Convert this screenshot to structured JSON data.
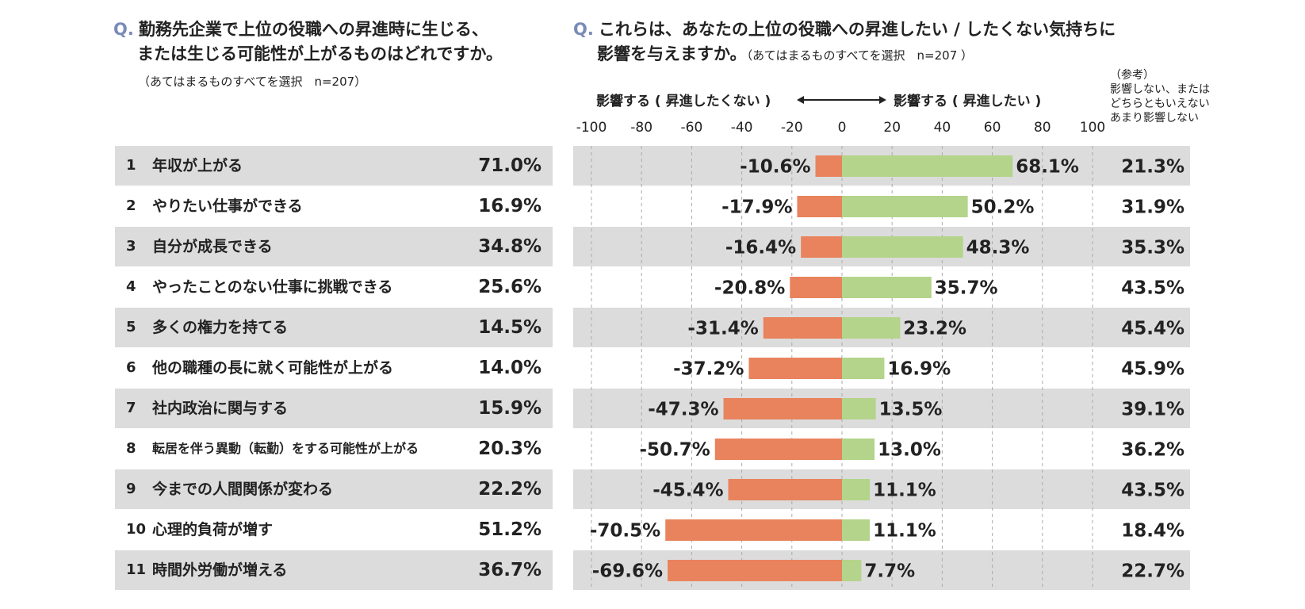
{
  "left_panel": {
    "q_mark": "Q.",
    "line1": "勤務先企業で上位の役職への昇進時に生じる、",
    "line2": "または生じる可能性が上がるものはどれですか。",
    "note": "（あてはまるものすべてを選択　n=207）",
    "rows": [
      {
        "num": "1",
        "label": "年収が上がる",
        "value": "71.0%"
      },
      {
        "num": "2",
        "label": "やりたい仕事ができる",
        "value": "16.9%"
      },
      {
        "num": "3",
        "label": "自分が成長できる",
        "value": "34.8%"
      },
      {
        "num": "4",
        "label": "やったことのない仕事に挑戦できる",
        "value": "25.6%"
      },
      {
        "num": "5",
        "label": "多くの権力を持てる",
        "value": "14.5%"
      },
      {
        "num": "6",
        "label": "他の職種の長に就く可能性が上がる",
        "value": "14.0%"
      },
      {
        "num": "7",
        "label": "社内政治に関与する",
        "value": "15.9%"
      },
      {
        "num": "8",
        "label": "転居を伴う異動（転勤）をする可能性が上がる",
        "value": "20.3%"
      },
      {
        "num": "9",
        "label": "今までの人間関係が変わる",
        "value": "22.2%"
      },
      {
        "num": "10",
        "label": "心理的負荷が増す",
        "value": "51.2%"
      },
      {
        "num": "11",
        "label": "時間外労働が増える",
        "value": "36.7%"
      }
    ]
  },
  "right_panel": {
    "q_mark": "Q.",
    "line1": "これらは、あなたの上位の役職への昇進したい / したくない気持ちに",
    "line2": "影響を与えますか。",
    "note": "（あてはまるものすべてを選択　n=207 ）",
    "legend_left": "影響する ( 昇進したくない )",
    "legend_right": "影響する ( 昇進したい )",
    "reference_header": [
      "（参考）",
      "影響しない、または",
      "どちらともいえない",
      "あまり影響しない"
    ]
  },
  "chart_data": {
    "type": "bar",
    "orientation": "horizontal-diverging",
    "xlim": [
      -100,
      100
    ],
    "ticks": [
      -100,
      -80,
      -60,
      -40,
      -20,
      0,
      20,
      40,
      60,
      80,
      100
    ],
    "grid": true,
    "categories": [
      "年収が上がる",
      "やりたい仕事ができる",
      "自分が成長できる",
      "やったことのない仕事に挑戦できる",
      "多くの権力を持てる",
      "他の職種の長に就く可能性が上がる",
      "社内政治に関与する",
      "転居を伴う異動（転勤）をする可能性が上がる",
      "今までの人間関係が変わる",
      "心理的負荷が増す",
      "時間外労働が増える"
    ],
    "series": [
      {
        "name": "影響する ( 昇進したくない )",
        "color": "#e8835d",
        "values": [
          -10.6,
          -17.9,
          -16.4,
          -20.8,
          -31.4,
          -37.2,
          -47.3,
          -50.7,
          -45.4,
          -70.5,
          -69.6
        ]
      },
      {
        "name": "影響する ( 昇進したい )",
        "color": "#b3d48a",
        "values": [
          68.1,
          50.2,
          48.3,
          35.7,
          23.2,
          16.9,
          13.5,
          13.0,
          11.1,
          11.1,
          7.7
        ]
      }
    ],
    "neg_labels": [
      "-10.6%",
      "-17.9%",
      "-16.4%",
      "-20.8%",
      "-31.4%",
      "-37.2%",
      "-47.3%",
      "-50.7%",
      "-45.4%",
      "-70.5%",
      "-69.6%"
    ],
    "pos_labels": [
      "68.1%",
      "50.2%",
      "48.3%",
      "35.7%",
      "23.2%",
      "16.9%",
      "13.5%",
      "13.0%",
      "11.1%",
      "11.1%",
      "7.7%"
    ],
    "reference_values": [
      "21.3%",
      "31.9%",
      "35.3%",
      "43.5%",
      "45.4%",
      "45.9%",
      "39.1%",
      "36.2%",
      "43.5%",
      "18.4%",
      "22.7%"
    ]
  },
  "colors": {
    "row_shade": "#dcdcdc",
    "q_mark": "#7a8bb8",
    "negative": "#e8835d",
    "positive": "#b3d48a",
    "grid": "#aaaaaa"
  }
}
